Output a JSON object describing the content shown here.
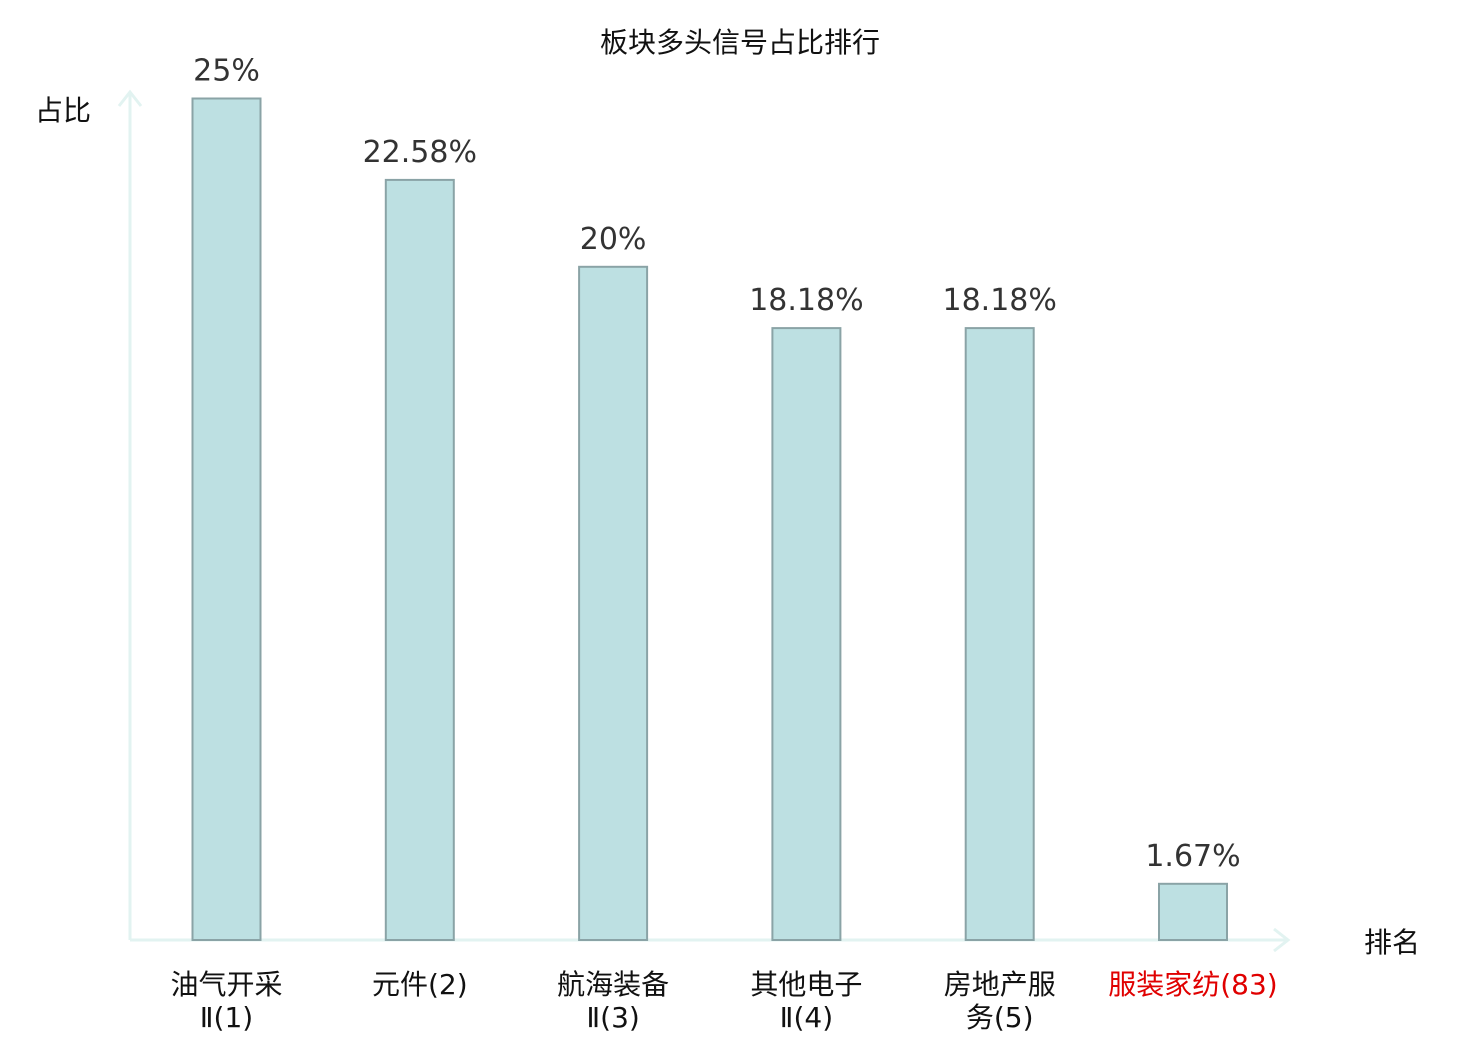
{
  "chart_data": {
    "type": "bar",
    "title": "板块多头信号占比排行",
    "xlabel": "排名",
    "ylabel": "占比",
    "ylim": [
      0,
      26.5
    ],
    "grid": false,
    "legend": "none",
    "categories": [
      [
        "油气开采",
        "Ⅱ(1)"
      ],
      [
        "元件(2)"
      ],
      [
        "航海装备",
        "Ⅱ(3)"
      ],
      [
        "其他电子",
        "Ⅱ(4)"
      ],
      [
        "房地产服",
        "务(5)"
      ],
      [
        "服装家纺(83)"
      ]
    ],
    "values": [
      25,
      22.58,
      20,
      18.18,
      18.18,
      1.67
    ],
    "value_labels": [
      "25%",
      "22.58%",
      "20%",
      "18.18%",
      "18.18%",
      "1.67%"
    ],
    "highlight_index": 5
  },
  "colors": {
    "bar_fill": "#bde0e2",
    "bar_stroke": "#8aa3a6",
    "axis": "#e2f3f1",
    "highlight": "#e00000"
  }
}
